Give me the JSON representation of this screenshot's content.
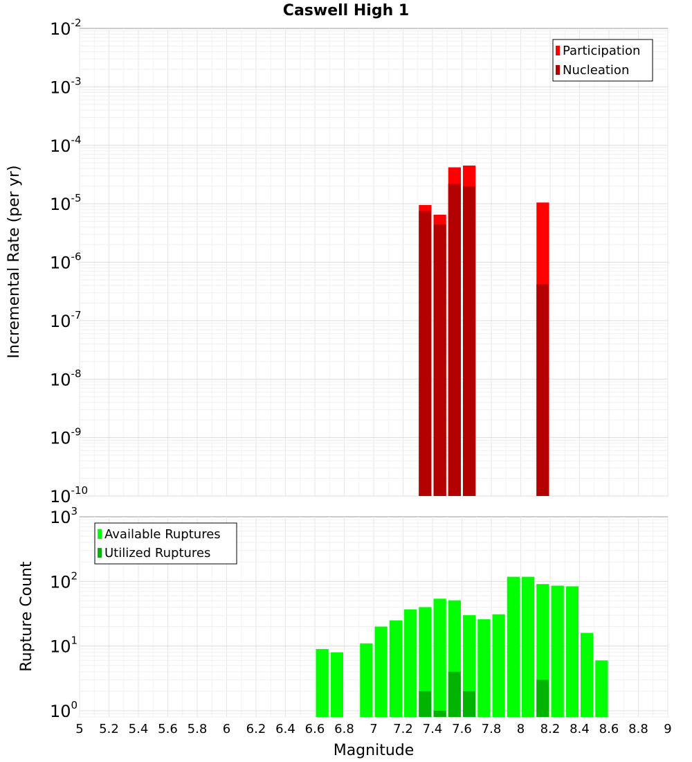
{
  "chart_data": [
    {
      "type": "bar",
      "title": "Caswell High 1",
      "ylabel": "Incremental Rate (per yr)",
      "y_scale": "log",
      "ylim": [
        1e-10,
        0.01
      ],
      "y_ticks": [
        {
          "base": "10",
          "exp": "-2"
        },
        {
          "base": "10",
          "exp": "-3"
        },
        {
          "base": "10",
          "exp": "-4"
        },
        {
          "base": "10",
          "exp": "-5"
        },
        {
          "base": "10",
          "exp": "-6"
        },
        {
          "base": "10",
          "exp": "-7"
        },
        {
          "base": "10",
          "exp": "-8"
        },
        {
          "base": "10",
          "exp": "-9"
        },
        {
          "base": "10",
          "exp": "-10"
        }
      ],
      "bin_width": 0.1,
      "legend": {
        "position": "top-right",
        "entries": [
          "Participation",
          "Nucleation"
        ]
      },
      "series": [
        {
          "name": "Participation",
          "color": "#ff0000",
          "x": [
            7.35,
            7.45,
            7.55,
            7.65,
            8.15
          ],
          "values": [
            9.5e-06,
            6.5e-06,
            4.2e-05,
            4.5e-05,
            1.05e-05
          ]
        },
        {
          "name": "Nucleation",
          "color": "#b30000",
          "x": [
            7.35,
            7.45,
            7.55,
            7.65,
            8.15
          ],
          "values": [
            7.5e-06,
            4.4e-06,
            2.2e-05,
            2e-05,
            4.2e-07
          ]
        }
      ]
    },
    {
      "type": "bar",
      "ylabel": "Rupture Count",
      "xlabel": "Magnitude",
      "y_scale": "log",
      "ylim": [
        0.8,
        1000
      ],
      "y_ticks": [
        {
          "base": "10",
          "exp": "3",
          "value": 1000
        },
        {
          "base": "10",
          "exp": "2",
          "value": 100
        },
        {
          "base": "10",
          "exp": "1",
          "value": 10
        },
        {
          "base": "10",
          "exp": "0",
          "value": 1
        }
      ],
      "xlim": [
        5,
        9
      ],
      "x_ticks": [
        "5",
        "5.2",
        "5.4",
        "5.6",
        "5.8",
        "6",
        "6.2",
        "6.4",
        "6.6",
        "6.8",
        "7",
        "7.2",
        "7.4",
        "7.6",
        "7.8",
        "8",
        "8.2",
        "8.4",
        "8.6",
        "8.8",
        "9"
      ],
      "bin_width": 0.1,
      "legend": {
        "position": "top-left",
        "entries": [
          "Available Ruptures",
          "Utilized Ruptures"
        ]
      },
      "series": [
        {
          "name": "Available Ruptures",
          "color": "#00ff00",
          "x": [
            6.65,
            6.75,
            6.95,
            7.05,
            7.15,
            7.25,
            7.35,
            7.45,
            7.55,
            7.65,
            7.75,
            7.85,
            7.95,
            8.05,
            8.15,
            8.25,
            8.35,
            8.45,
            8.55
          ],
          "values": [
            9,
            8,
            11,
            20,
            25,
            37,
            40,
            54,
            51,
            30,
            26,
            31,
            118,
            118,
            91,
            86,
            84,
            16,
            6
          ]
        },
        {
          "name": "Utilized Ruptures",
          "color": "#00b300",
          "x": [
            7.35,
            7.45,
            7.55,
            7.65,
            8.15
          ],
          "values": [
            2,
            1,
            4,
            2,
            3
          ]
        }
      ]
    }
  ]
}
